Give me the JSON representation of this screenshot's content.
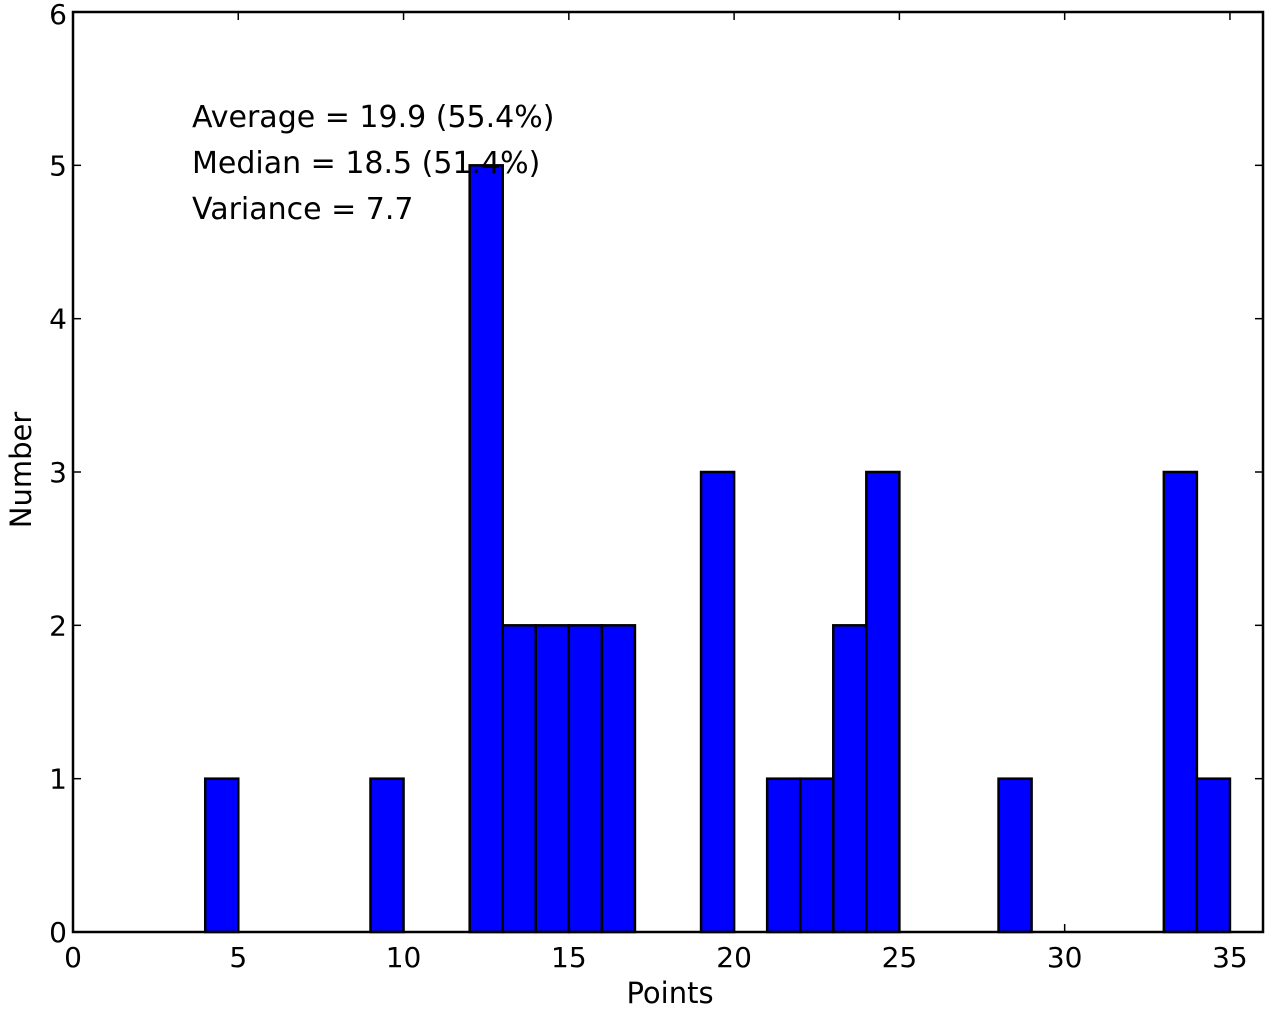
{
  "chart_data": {
    "type": "bar",
    "subtype": "histogram",
    "title": "",
    "xlabel": "Points",
    "ylabel": "Number",
    "xlim": [
      0,
      36
    ],
    "ylim": [
      0,
      6
    ],
    "xticks": [
      0,
      5,
      10,
      15,
      20,
      25,
      30,
      35
    ],
    "yticks": [
      0,
      1,
      2,
      3,
      4,
      5,
      6
    ],
    "bin_width": 1,
    "bins": [
      {
        "x": 4,
        "count": 1
      },
      {
        "x": 9,
        "count": 1
      },
      {
        "x": 12,
        "count": 5
      },
      {
        "x": 13,
        "count": 2
      },
      {
        "x": 14,
        "count": 2
      },
      {
        "x": 15,
        "count": 2
      },
      {
        "x": 16,
        "count": 2
      },
      {
        "x": 19,
        "count": 3
      },
      {
        "x": 21,
        "count": 1
      },
      {
        "x": 22,
        "count": 1
      },
      {
        "x": 23,
        "count": 2
      },
      {
        "x": 24,
        "count": 3
      },
      {
        "x": 28,
        "count": 1
      },
      {
        "x": 33,
        "count": 3
      },
      {
        "x": 34,
        "count": 1
      }
    ],
    "bar_color": "#0000ff",
    "edge_color": "#000000",
    "grid": false,
    "annotations": [
      "Average = 19.9 (55.4%)",
      "Median = 18.5 (51.4%)",
      "Variance = 7.7"
    ]
  }
}
